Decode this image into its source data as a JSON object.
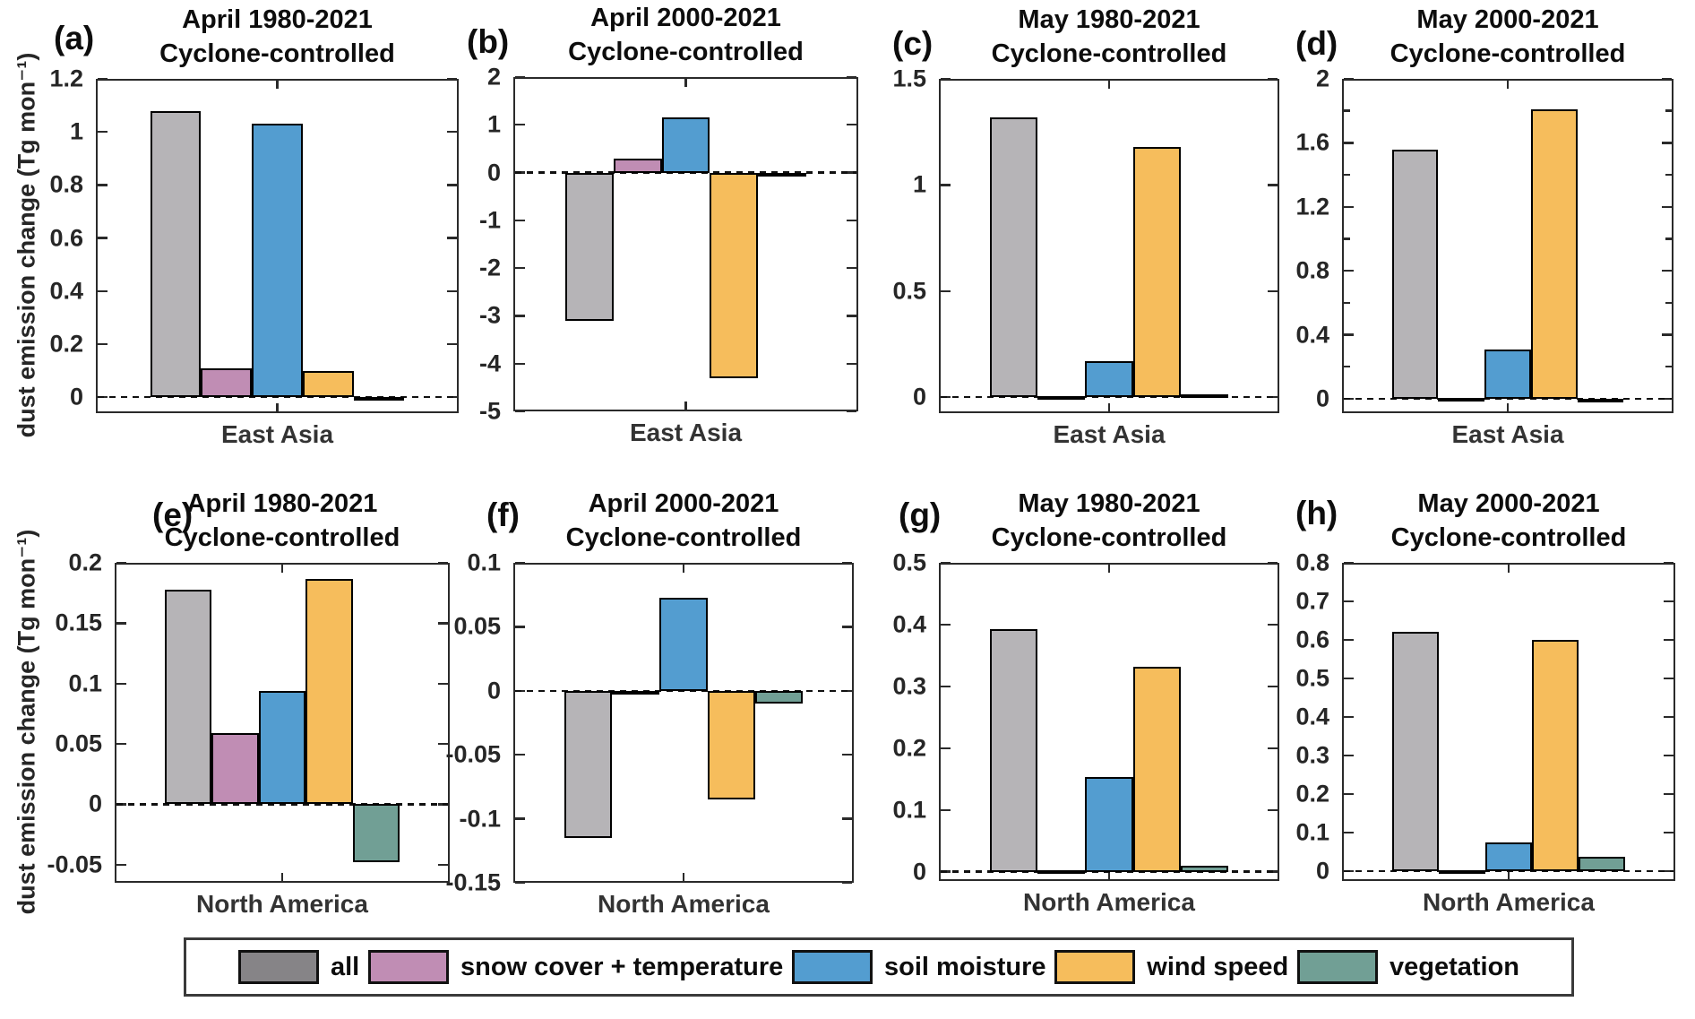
{
  "figure": {
    "ylabel": "dust emission change (Tg mon⁻¹)",
    "series_names": [
      "all",
      "snow cover + temperature",
      "soil moisture",
      "wind speed",
      "vegetation"
    ],
    "series_colors": [
      "#b6b4b7",
      "#c08db4",
      "#539dd0",
      "#f6bd5c",
      "#719f95"
    ],
    "bar_edge_color": "#000000",
    "axis_color": "#2a2a2a",
    "legend": {
      "items": [
        {
          "label": "all",
          "color": "#868487"
        },
        {
          "label": "snow cover + temperature",
          "color": "#c08db4"
        },
        {
          "label": "soil moisture",
          "color": "#539dd0"
        },
        {
          "label": "wind speed",
          "color": "#f6bd5c"
        },
        {
          "label": "vegetation",
          "color": "#719f95"
        }
      ]
    }
  },
  "chart_data": [
    {
      "type": "bar",
      "tag": "(a)",
      "title": "April 1980-2021",
      "subtitle": "Cyclone-controlled",
      "categories": [
        "East Asia"
      ],
      "ylim": [
        -0.06,
        1.2
      ],
      "ticks": [
        {
          "v": 0,
          "label": "0"
        },
        {
          "v": 0.2,
          "label": "0.2"
        },
        {
          "v": 0.4,
          "label": "0.4"
        },
        {
          "v": 0.6,
          "label": "0.6"
        },
        {
          "v": 0.8,
          "label": "0.8"
        },
        {
          "v": 1,
          "label": "1"
        },
        {
          "v": 1.2,
          "label": "1.2"
        }
      ],
      "minor_ticks": [],
      "series": [
        {
          "name": "all",
          "value": 1.08
        },
        {
          "name": "snow cover + temperature",
          "value": 0.11
        },
        {
          "name": "soil moisture",
          "value": 1.03
        },
        {
          "name": "wind speed",
          "value": 0.1
        },
        {
          "name": "vegetation",
          "value": -0.012
        }
      ]
    },
    {
      "type": "bar",
      "tag": "(b)",
      "title": "April 2000-2021",
      "subtitle": "Cyclone-controlled",
      "categories": [
        "East Asia"
      ],
      "ylim": [
        -5,
        2
      ],
      "ticks": [
        {
          "v": 2,
          "label": "2"
        },
        {
          "v": 1,
          "label": "1"
        },
        {
          "v": 0,
          "label": "0"
        },
        {
          "v": -1,
          "label": "-1"
        },
        {
          "v": -2,
          "label": "-2"
        },
        {
          "v": -3,
          "label": "-3"
        },
        {
          "v": -4,
          "label": "-4"
        },
        {
          "v": -5,
          "label": "-5"
        }
      ],
      "minor_ticks": [],
      "series": [
        {
          "name": "all",
          "value": -3.1
        },
        {
          "name": "snow cover + temperature",
          "value": 0.3
        },
        {
          "name": "soil moisture",
          "value": 1.15
        },
        {
          "name": "wind speed",
          "value": -4.3
        },
        {
          "name": "vegetation",
          "value": -0.05
        }
      ]
    },
    {
      "type": "bar",
      "tag": "(c)",
      "title": "May 1980-2021",
      "subtitle": "Cyclone-controlled",
      "categories": [
        "East Asia"
      ],
      "ylim": [
        -0.075,
        1.5
      ],
      "ticks": [
        {
          "v": 0,
          "label": "0"
        },
        {
          "v": 0.5,
          "label": "0.5"
        },
        {
          "v": 1,
          "label": "1"
        },
        {
          "v": 1.5,
          "label": "1.5"
        }
      ],
      "minor_ticks": [],
      "series": [
        {
          "name": "all",
          "value": 1.32
        },
        {
          "name": "snow cover + temperature",
          "value": 0.004
        },
        {
          "name": "soil moisture",
          "value": 0.17
        },
        {
          "name": "wind speed",
          "value": 1.18
        },
        {
          "name": "vegetation",
          "value": 0.012
        }
      ]
    },
    {
      "type": "bar",
      "tag": "(d)",
      "title": "May 2000-2021",
      "subtitle": "Cyclone-controlled",
      "categories": [
        "East Asia"
      ],
      "ylim": [
        -0.09,
        2
      ],
      "ticks": [
        {
          "v": 0,
          "label": "0"
        },
        {
          "v": 0.4,
          "label": "0.4"
        },
        {
          "v": 0.8,
          "label": "0.8"
        },
        {
          "v": 1.2,
          "label": "1.2"
        },
        {
          "v": 1.6,
          "label": "1.6"
        },
        {
          "v": 2,
          "label": "2"
        }
      ],
      "minor_ticks": [
        0.2,
        0.6,
        1.0,
        1.4,
        1.8
      ],
      "series": [
        {
          "name": "all",
          "value": 1.56
        },
        {
          "name": "snow cover + temperature",
          "value": 0.004
        },
        {
          "name": "soil moisture",
          "value": 0.31
        },
        {
          "name": "wind speed",
          "value": 1.81
        },
        {
          "name": "vegetation",
          "value": -0.025
        }
      ]
    },
    {
      "type": "bar",
      "tag": "(e)",
      "title": "April 1980-2021",
      "subtitle": "Cyclone-controlled",
      "categories": [
        "North America"
      ],
      "ylim": [
        -0.065,
        0.2
      ],
      "ticks": [
        {
          "v": 0.2,
          "label": "0.2"
        },
        {
          "v": 0.15,
          "label": "0.15"
        },
        {
          "v": 0.1,
          "label": "0.1"
        },
        {
          "v": 0.05,
          "label": "0.05"
        },
        {
          "v": 0,
          "label": "0"
        },
        {
          "v": -0.05,
          "label": "-0.05"
        }
      ],
      "minor_ticks": [],
      "series": [
        {
          "name": "all",
          "value": 0.178
        },
        {
          "name": "snow cover + temperature",
          "value": 0.059
        },
        {
          "name": "soil moisture",
          "value": 0.094
        },
        {
          "name": "wind speed",
          "value": 0.187
        },
        {
          "name": "vegetation",
          "value": -0.048
        }
      ]
    },
    {
      "type": "bar",
      "tag": "(f)",
      "title": "April 2000-2021",
      "subtitle": "Cyclone-controlled",
      "categories": [
        "North America"
      ],
      "ylim": [
        -0.15,
        0.1
      ],
      "ticks": [
        {
          "v": 0.1,
          "label": "0.1"
        },
        {
          "v": 0.05,
          "label": "0.05"
        },
        {
          "v": 0,
          "label": "0"
        },
        {
          "v": -0.05,
          "label": "-0.05"
        },
        {
          "v": -0.1,
          "label": "-0.1"
        },
        {
          "v": -0.15,
          "label": "-0.15"
        }
      ],
      "minor_ticks": [],
      "series": [
        {
          "name": "all",
          "value": -0.115
        },
        {
          "name": "snow cover + temperature",
          "value": -0.002
        },
        {
          "name": "soil moisture",
          "value": 0.073
        },
        {
          "name": "wind speed",
          "value": -0.085
        },
        {
          "name": "vegetation",
          "value": -0.01
        }
      ]
    },
    {
      "type": "bar",
      "tag": "(g)",
      "title": "May 1980-2021",
      "subtitle": "Cyclone-controlled",
      "categories": [
        "North America"
      ],
      "ylim": [
        -0.015,
        0.5
      ],
      "ticks": [
        {
          "v": 0,
          "label": "0"
        },
        {
          "v": 0.1,
          "label": "0.1"
        },
        {
          "v": 0.2,
          "label": "0.2"
        },
        {
          "v": 0.3,
          "label": "0.3"
        },
        {
          "v": 0.4,
          "label": "0.4"
        },
        {
          "v": 0.5,
          "label": "0.5"
        }
      ],
      "minor_ticks": [],
      "series": [
        {
          "name": "all",
          "value": 0.393
        },
        {
          "name": "snow cover + temperature",
          "value": 0.002
        },
        {
          "name": "soil moisture",
          "value": 0.154
        },
        {
          "name": "wind speed",
          "value": 0.332
        },
        {
          "name": "vegetation",
          "value": 0.01
        }
      ]
    },
    {
      "type": "bar",
      "tag": "(h)",
      "title": "May 2000-2021",
      "subtitle": "Cyclone-controlled",
      "categories": [
        "North America"
      ],
      "ylim": [
        -0.026,
        0.8
      ],
      "ticks": [
        {
          "v": 0,
          "label": "0"
        },
        {
          "v": 0.1,
          "label": "0.1"
        },
        {
          "v": 0.2,
          "label": "0.2"
        },
        {
          "v": 0.3,
          "label": "0.3"
        },
        {
          "v": 0.4,
          "label": "0.4"
        },
        {
          "v": 0.5,
          "label": "0.5"
        },
        {
          "v": 0.6,
          "label": "0.6"
        },
        {
          "v": 0.7,
          "label": "0.7"
        },
        {
          "v": 0.8,
          "label": "0.8"
        }
      ],
      "minor_ticks": [],
      "series": [
        {
          "name": "all",
          "value": 0.62
        },
        {
          "name": "snow cover + temperature",
          "value": 0.003
        },
        {
          "name": "soil moisture",
          "value": 0.075
        },
        {
          "name": "wind speed",
          "value": 0.6
        },
        {
          "name": "vegetation",
          "value": 0.037
        }
      ]
    }
  ]
}
